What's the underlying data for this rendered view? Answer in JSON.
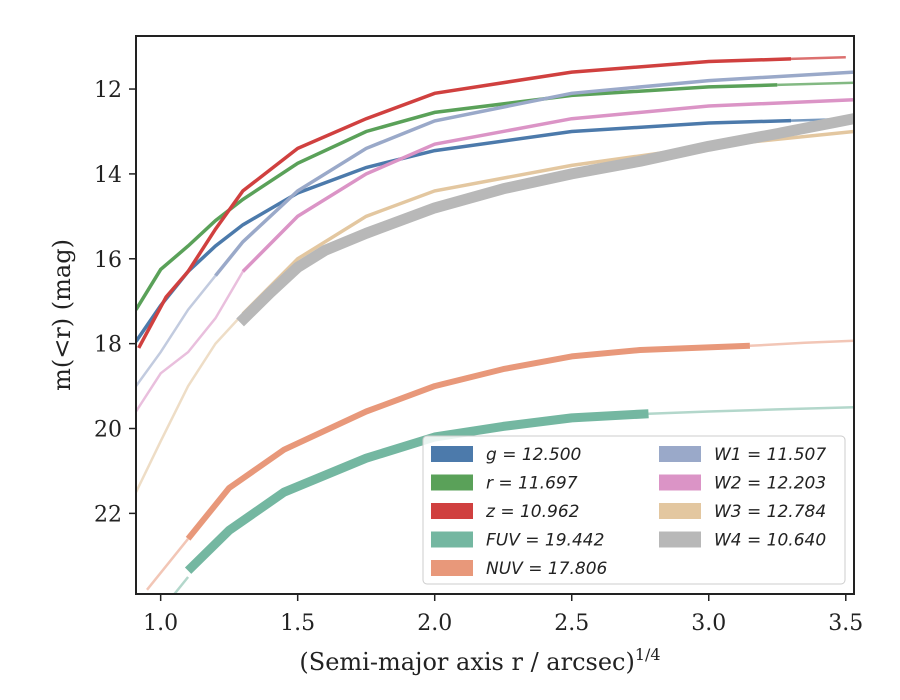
{
  "chart_data": {
    "type": "line",
    "title": "",
    "xlabel": "(Semi-major axis r / arcsec)",
    "xlabel_sup": "1/4",
    "ylabel": "m(<r) (mag)",
    "xlim": [
      0.91,
      3.53
    ],
    "ylim": [
      23.9,
      10.75
    ],
    "y_inverted": true,
    "grid": false,
    "legend_position": "lower-right",
    "xticks": [
      1.0,
      1.5,
      2.0,
      2.5,
      3.0,
      3.5
    ],
    "xtick_labels": [
      "1.0",
      "1.5",
      "2.0",
      "2.5",
      "3.0",
      "3.5"
    ],
    "yticks": [
      12,
      14,
      16,
      18,
      20,
      22
    ],
    "ytick_labels": [
      "12",
      "14",
      "16",
      "18",
      "20",
      "22"
    ],
    "series": [
      {
        "name": "g = 12.500",
        "color": "#4C7AAB",
        "x": [
          0.91,
          1.0,
          1.1,
          1.2,
          1.3,
          1.5,
          1.75,
          2.0,
          2.5,
          3.0,
          3.53
        ],
        "y": [
          17.95,
          17.1,
          16.3,
          15.7,
          15.2,
          14.45,
          13.85,
          13.45,
          13.0,
          12.8,
          12.7
        ],
        "fade_x": 3.3
      },
      {
        "name": "r = 11.697",
        "color": "#5AA159",
        "x": [
          0.91,
          1.0,
          1.1,
          1.2,
          1.3,
          1.5,
          1.75,
          2.0,
          2.5,
          3.0,
          3.53
        ],
        "y": [
          17.2,
          16.25,
          15.7,
          15.1,
          14.6,
          13.75,
          13.0,
          12.55,
          12.15,
          11.95,
          11.85
        ],
        "fade_x": 3.25
      },
      {
        "name": "z = 10.962",
        "color": "#D0403F",
        "x": [
          0.92,
          1.02,
          1.1,
          1.2,
          1.3,
          1.5,
          1.75,
          2.0,
          2.5,
          3.0,
          3.5
        ],
        "y": [
          18.1,
          16.9,
          16.3,
          15.3,
          14.4,
          13.4,
          12.7,
          12.1,
          11.6,
          11.35,
          11.25
        ],
        "fade_x": 3.3
      },
      {
        "name": "FUV = 19.442",
        "color": "#74B7A1",
        "x": [
          1.1,
          1.25,
          1.45,
          1.75,
          2.0,
          2.25,
          2.5,
          2.78
        ],
        "y": [
          23.35,
          22.4,
          21.5,
          20.7,
          20.2,
          19.95,
          19.75,
          19.65
        ],
        "fade_x": [
          0.95,
          1.05,
          1.1
        ],
        "fade_y": [
          24.1,
          23.9,
          23.5
        ],
        "tail_x": [
          2.78,
          3.0,
          3.25,
          3.53
        ],
        "tail_y": [
          19.65,
          19.6,
          19.55,
          19.5
        ]
      },
      {
        "name": "NUV = 17.806",
        "color": "#E8987A",
        "x": [
          1.1,
          1.25,
          1.45,
          1.75,
          2.0,
          2.25,
          2.5,
          2.75,
          3.15
        ],
        "y": [
          22.6,
          21.4,
          20.5,
          19.6,
          19.0,
          18.6,
          18.3,
          18.15,
          18.05
        ],
        "fade_x": [
          0.95,
          1.05,
          1.1
        ],
        "fade_y": [
          23.8,
          23.0,
          22.6
        ],
        "tail_x": [
          3.15,
          3.35,
          3.53
        ],
        "tail_y": [
          18.05,
          17.98,
          17.93
        ]
      },
      {
        "name": "W1 = 11.507",
        "color": "#9AA9C9",
        "x": [
          0.91,
          1.0,
          1.1,
          1.2,
          1.3,
          1.5,
          1.75,
          2.0,
          2.5,
          3.0,
          3.53
        ],
        "y": [
          19.0,
          18.2,
          17.2,
          16.4,
          15.6,
          14.4,
          13.4,
          12.75,
          12.1,
          11.8,
          11.6
        ],
        "fade_x": 1.2
      },
      {
        "name": "W2 = 12.203",
        "color": "#DB94C6",
        "x": [
          0.91,
          1.0,
          1.1,
          1.2,
          1.3,
          1.5,
          1.75,
          2.0,
          2.5,
          3.0,
          3.53
        ],
        "y": [
          19.6,
          18.7,
          18.2,
          17.4,
          16.3,
          15.0,
          14.0,
          13.3,
          12.7,
          12.4,
          12.25
        ],
        "fade_x": 1.3
      },
      {
        "name": "W3 = 12.784",
        "color": "#E3C7A0",
        "x": [
          0.91,
          1.0,
          1.1,
          1.2,
          1.3,
          1.5,
          1.75,
          2.0,
          2.5,
          3.0,
          3.53
        ],
        "y": [
          21.5,
          20.3,
          19.0,
          18.0,
          17.3,
          16.0,
          15.0,
          14.4,
          13.8,
          13.35,
          13.0
        ],
        "fade_x": 1.3
      },
      {
        "name": "W4 = 10.640",
        "color": "#B8B8B8",
        "x": [
          1.29,
          1.4,
          1.5,
          1.6,
          1.75,
          2.0,
          2.25,
          2.5,
          2.75,
          3.0,
          3.25,
          3.53
        ],
        "y": [
          17.5,
          16.8,
          16.2,
          15.8,
          15.4,
          14.8,
          14.35,
          14.0,
          13.7,
          13.35,
          13.05,
          12.7
        ],
        "thick": true
      }
    ]
  }
}
